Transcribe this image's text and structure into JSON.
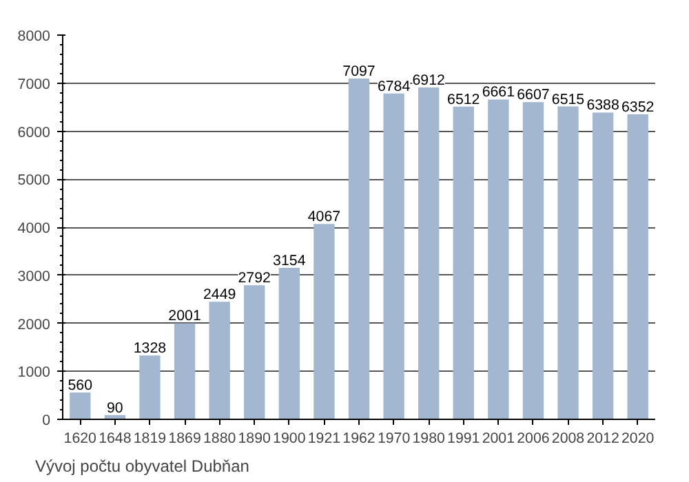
{
  "chart_data": {
    "type": "bar",
    "categories": [
      "1620",
      "1648",
      "1819",
      "1869",
      "1880",
      "1890",
      "1900",
      "1921",
      "1962",
      "1970",
      "1980",
      "1991",
      "2001",
      "2006",
      "2008",
      "2012",
      "2020"
    ],
    "values": [
      560,
      90,
      1328,
      2001,
      2449,
      2792,
      3154,
      4067,
      7097,
      6784,
      6912,
      6512,
      6661,
      6607,
      6515,
      6388,
      6352
    ],
    "color": "#a3b8d0",
    "ylim": [
      0,
      8000
    ],
    "yticks": [
      0,
      1000,
      2000,
      3000,
      4000,
      5000,
      6000,
      7000,
      8000
    ],
    "grid": "y",
    "data_labels": true,
    "annotations": [
      "Vývoj počtu obyvatel Dubňan"
    ]
  }
}
